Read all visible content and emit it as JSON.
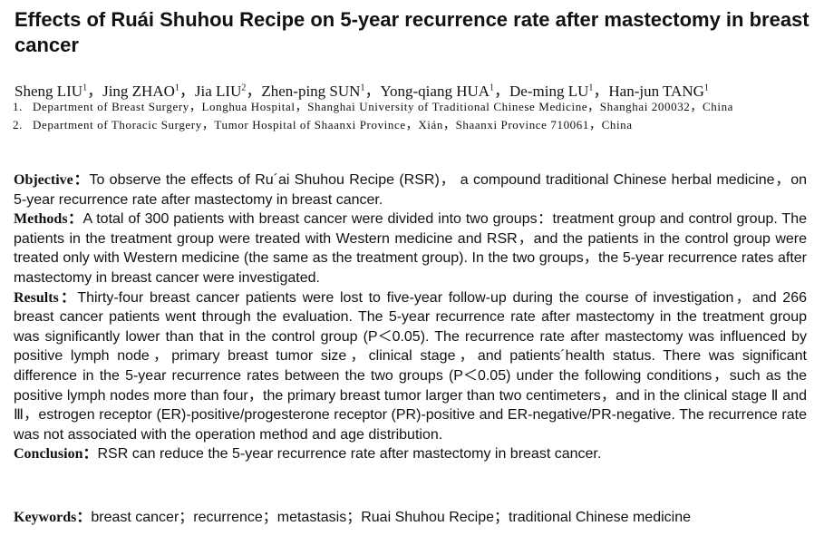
{
  "title": "Effects of Ruái Shuhou Recipe on 5-year recurrence rate after mastectomy in breast cancer",
  "author_separator": "，",
  "authors": [
    {
      "name": "Sheng LIU",
      "affiliation": "1"
    },
    {
      "name": "Jing ZHAO",
      "affiliation": "1"
    },
    {
      "name": "Jia LIU",
      "affiliation": "2"
    },
    {
      "name": "Zhen-ping SUN",
      "affiliation": "1"
    },
    {
      "name": "Yong-qiang HUA",
      "affiliation": "1"
    },
    {
      "name": "De-ming LU",
      "affiliation": "1"
    },
    {
      "name": "Han-jun TANG",
      "affiliation": "1"
    }
  ],
  "affiliations": [
    {
      "number": "1.",
      "text": "Department of Breast Surgery，Longhua Hospital，Shanghai University of Traditional Chinese Medicine，Shanghai 200032，China"
    },
    {
      "number": "2.",
      "text": "Department of Thoracic Surgery，Tumor Hospital of Shaanxi Province，Xián，Shaanxi Province 710061，China"
    }
  ],
  "abstract": [
    {
      "label": "Objective：",
      "text": "To observe the effects of Ru´ai Shuhou Recipe (RSR)， a compound traditional Chinese herbal medicine，on 5-year recurrence rate after mastectomy in breast cancer."
    },
    {
      "label": "Methods：",
      "text": "A total of 300 patients with breast cancer were divided into two groups：treatment group and control group. The patients in the treatment group were treated with Western medicine and RSR，and the patients in the control group were treated only with Western medicine (the same as the treatment group). In the two groups，the 5-year recurrence rates after mastectomy in breast cancer were investigated."
    },
    {
      "label": "Results：",
      "text": "Thirty-four breast cancer patients were lost to five-year follow-up during the course of investigation，and 266 breast cancer patients went through the evaluation. The 5-year recurrence rate after mastectomy in the treatment group was significantly lower than that in the control group (P＜0.05). The recurrence rate after mastectomy was influenced by positive lymph node，primary breast tumor size，clinical stage，and patients´health status. There was significant difference in the 5-year recurrence rates between the two groups (P＜0.05) under the following conditions，such as the positive lymph nodes more than four，the primary breast tumor larger than two centimeters，and in the clinical stage Ⅱ and Ⅲ，estrogen receptor (ER)-positive/progesterone receptor (PR)-positive and ER-negative/PR-negative. The recurrence rate was not associated with the operation method and age distribution."
    },
    {
      "label": "Conclusion：",
      "text": "RSR can reduce the 5-year recurrence rate after mastectomy in breast cancer."
    }
  ],
  "keywords": {
    "label": "Keywords：",
    "text": "breast cancer；recurrence；metastasis；Ruai Shuhou Recipe；traditional Chinese medicine"
  }
}
